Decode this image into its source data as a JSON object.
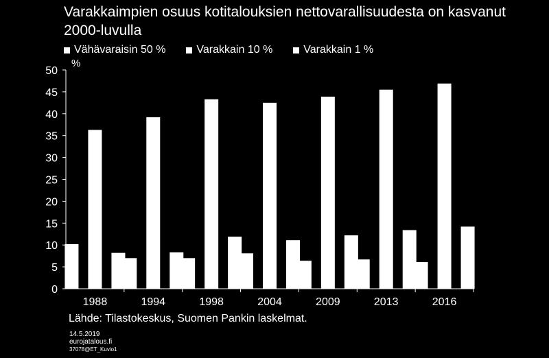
{
  "chart_data": {
    "type": "bar",
    "title": "Varakkaimpien osuus kotitalouksien nettovarallisuudesta on kasvanut 2000-luvulla",
    "unit_label": "%",
    "categories": [
      "1988",
      "1994",
      "1998",
      "2004",
      "2009",
      "2013",
      "2016"
    ],
    "series": [
      {
        "name": "Vähävaraisin 50 %",
        "values": [
          10.2,
          7.0,
          7.0,
          8.1,
          6.4,
          6.7,
          6.1
        ]
      },
      {
        "name": "Varakkain 10 %",
        "values": [
          36.3,
          39.2,
          43.3,
          42.5,
          43.9,
          45.5,
          46.9
        ]
      },
      {
        "name": "Varakkain 1 %",
        "values": [
          8.2,
          8.3,
          11.9,
          11.1,
          12.2,
          13.4,
          14.2
        ]
      }
    ],
    "ylim": [
      0,
      50
    ],
    "yticks": [
      0,
      5,
      10,
      15,
      20,
      25,
      30,
      35,
      40,
      45,
      50
    ],
    "grid": false,
    "legend_position": "top",
    "bar_color": "#ffffff"
  },
  "source_text": "Lähde: Tilastokeskus, Suomen Pankin laskelmat.",
  "footer": {
    "date": "14.5.2019",
    "site": "eurojatalous.fi",
    "code": "37078@ET_Kuvio1"
  }
}
